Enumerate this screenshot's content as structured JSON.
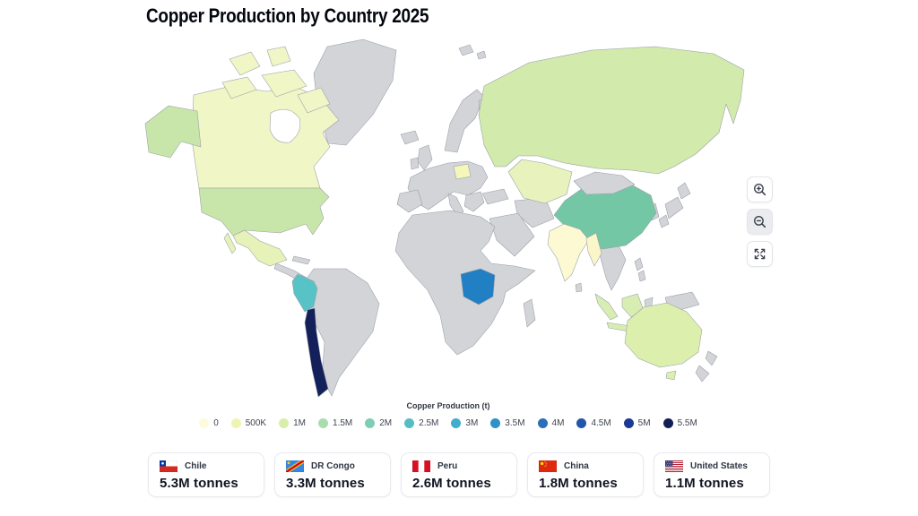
{
  "title": "Copper Production by Country 2025",
  "chart_data": {
    "type": "choropleth_map",
    "title": "Copper Production by Country 2025",
    "unit": "tonnes",
    "legend": {
      "title": "Copper Production (t)",
      "position": "bottom-center",
      "stops": [
        {
          "label": "0",
          "color": "#fcfcdc"
        },
        {
          "label": "500K",
          "color": "#eef5b2"
        },
        {
          "label": "1M",
          "color": "#d9eeaa"
        },
        {
          "label": "1.5M",
          "color": "#abdcae"
        },
        {
          "label": "2M",
          "color": "#7ecdb7"
        },
        {
          "label": "2.5M",
          "color": "#55bec5"
        },
        {
          "label": "3M",
          "color": "#3fadcb"
        },
        {
          "label": "3.5M",
          "color": "#2f91c8"
        },
        {
          "label": "4M",
          "color": "#2a6fb8"
        },
        {
          "label": "4.5M",
          "color": "#2355a8"
        },
        {
          "label": "5M",
          "color": "#1c3a94"
        },
        {
          "label": "5.5M",
          "color": "#111f55"
        }
      ]
    },
    "no_data_color": "#d3d4d8",
    "countries": [
      {
        "id": "chile",
        "name": "Chile",
        "value": "5.3M",
        "color": "#13205a"
      },
      {
        "id": "dr-congo",
        "name": "DR Congo",
        "value": "3.3M",
        "color": "#2180c4"
      },
      {
        "id": "peru",
        "name": "Peru",
        "value": "2.6M",
        "color": "#58c3c6"
      },
      {
        "id": "china",
        "name": "China",
        "value": "1.8M",
        "color": "#74c7a4"
      },
      {
        "id": "united-states",
        "name": "United States",
        "value": "1.1M",
        "color": "#c8e6a9"
      },
      {
        "id": "russia",
        "name": "Russia",
        "color": "#d2eaab"
      },
      {
        "id": "indonesia",
        "name": "Indonesia",
        "color": "#d8edb2"
      },
      {
        "id": "australia",
        "name": "Australia",
        "color": "#dcefad"
      },
      {
        "id": "mexico",
        "name": "Mexico",
        "color": "#e6f2b8"
      },
      {
        "id": "kazakhstan",
        "name": "Kazakhstan",
        "color": "#e7f2bc"
      },
      {
        "id": "canada",
        "name": "Canada",
        "color": "#f1f6c6"
      },
      {
        "id": "poland",
        "name": "Poland",
        "color": "#f5f6ba"
      },
      {
        "id": "myanmar",
        "name": "Myanmar",
        "color": "#fbf6ca"
      },
      {
        "id": "india",
        "name": "India",
        "color": "#fdf9d2"
      }
    ]
  },
  "controls": {
    "zoom_in_icon": "magnifier-plus",
    "zoom_out_icon": "magnifier-minus",
    "fullscreen_icon": "expand-arrows"
  },
  "cards": [
    {
      "country": "Chile",
      "value": "5.3M tonnes",
      "flag": "chile-flag-icon"
    },
    {
      "country": "DR Congo",
      "value": "3.3M tonnes",
      "flag": "dr-congo-flag-icon"
    },
    {
      "country": "Peru",
      "value": "2.6M tonnes",
      "flag": "peru-flag-icon"
    },
    {
      "country": "China",
      "value": "1.8M tonnes",
      "flag": "china-flag-icon"
    },
    {
      "country": "United States",
      "value": "1.1M tonnes",
      "flag": "united-states-flag-icon"
    }
  ]
}
